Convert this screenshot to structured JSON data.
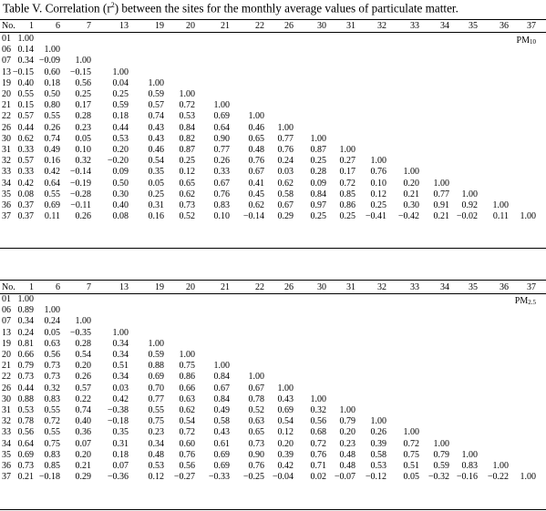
{
  "caption": {
    "prefix": "Table V. Correlation (r",
    "superscript": "2",
    "suffix": ") between the sites for the monthly average values of particulate matter."
  },
  "column_header_first": "No.",
  "column_headers": [
    "1",
    "6",
    "7",
    "13",
    "19",
    "20",
    "21",
    "22",
    "26",
    "30",
    "31",
    "32",
    "33",
    "34",
    "35",
    "36",
    "37"
  ],
  "row_labels": [
    "01",
    "06",
    "07",
    "13",
    "19",
    "20",
    "21",
    "22",
    "26",
    "30",
    "31",
    "32",
    "33",
    "34",
    "35",
    "36",
    "37"
  ],
  "tables": [
    {
      "label_main": "PM",
      "label_sub": "10",
      "rows": [
        [
          "1.00"
        ],
        [
          "0.14",
          "1.00"
        ],
        [
          "0.34",
          "−0.09",
          "1.00"
        ],
        [
          "−0.15",
          "0.60",
          "−0.15",
          "1.00"
        ],
        [
          "0.40",
          "0.18",
          "0.56",
          "0.04",
          "1.00"
        ],
        [
          "0.55",
          "0.50",
          "0.25",
          "0.25",
          "0.59",
          "1.00"
        ],
        [
          "0.15",
          "0.80",
          "0.17",
          "0.59",
          "0.57",
          "0.72",
          "1.00"
        ],
        [
          "0.57",
          "0.55",
          "0.28",
          "0.18",
          "0.74",
          "0.53",
          "0.69",
          "1.00"
        ],
        [
          "0.44",
          "0.26",
          "0.23",
          "0.44",
          "0.43",
          "0.84",
          "0.64",
          "0.46",
          "1.00"
        ],
        [
          "0.62",
          "0.74",
          "0.05",
          "0.53",
          "0.43",
          "0.82",
          "0.90",
          "0.65",
          "0.77",
          "1.00"
        ],
        [
          "0.33",
          "0.49",
          "0.10",
          "0.20",
          "0.46",
          "0.87",
          "0.77",
          "0.48",
          "0.76",
          "0.87",
          "1.00"
        ],
        [
          "0.57",
          "0.16",
          "0.32",
          "−0.20",
          "0.54",
          "0.25",
          "0.26",
          "0.76",
          "0.24",
          "0.25",
          "0.27",
          "1.00"
        ],
        [
          "0.33",
          "0.42",
          "−0.14",
          "0.09",
          "0.35",
          "0.12",
          "0.33",
          "0.67",
          "0.03",
          "0.28",
          "0.17",
          "0.76",
          "1.00"
        ],
        [
          "0.42",
          "0.64",
          "−0.19",
          "0.50",
          "0.05",
          "0.65",
          "0.67",
          "0.41",
          "0.62",
          "0.09",
          "0.72",
          "0.10",
          "0.20",
          "1.00"
        ],
        [
          "0.08",
          "0.55",
          "−0.28",
          "0.30",
          "0.25",
          "0.62",
          "0.76",
          "0.45",
          "0.58",
          "0.84",
          "0.85",
          "0.12",
          "0.21",
          "0.77",
          "1.00"
        ],
        [
          "0.37",
          "0.69",
          "−0.11",
          "0.40",
          "0.31",
          "0.73",
          "0.83",
          "0.62",
          "0.67",
          "0.97",
          "0.86",
          "0.25",
          "0.30",
          "0.91",
          "0.92",
          "1.00"
        ],
        [
          "0.37",
          "0.11",
          "0.26",
          "0.08",
          "0.16",
          "0.52",
          "0.10",
          "−0.14",
          "0.29",
          "0.25",
          "0.25",
          "−0.41",
          "−0.42",
          "0.21",
          "−0.02",
          "0.11",
          "1.00"
        ]
      ]
    },
    {
      "label_main": "PM",
      "label_sub": "2.5",
      "rows": [
        [
          "1.00"
        ],
        [
          "0.89",
          "1.00"
        ],
        [
          "0.34",
          "0.24",
          "1.00"
        ],
        [
          "0.24",
          "0.05",
          "−0.35",
          "1.00"
        ],
        [
          "0.81",
          "0.63",
          "0.28",
          "0.34",
          "1.00"
        ],
        [
          "0.66",
          "0.56",
          "0.54",
          "0.34",
          "0.59",
          "1.00"
        ],
        [
          "0.79",
          "0.73",
          "0.20",
          "0.51",
          "0.88",
          "0.75",
          "1.00"
        ],
        [
          "0.73",
          "0.73",
          "0.26",
          "0.34",
          "0.69",
          "0.86",
          "0.84",
          "1.00"
        ],
        [
          "0.44",
          "0.32",
          "0.57",
          "0.03",
          "0.70",
          "0.66",
          "0.67",
          "0.67",
          "1.00"
        ],
        [
          "0.88",
          "0.83",
          "0.22",
          "0.42",
          "0.77",
          "0.63",
          "0.84",
          "0.78",
          "0.43",
          "1.00"
        ],
        [
          "0.53",
          "0.55",
          "0.74",
          "−0.38",
          "0.55",
          "0.62",
          "0.49",
          "0.52",
          "0.69",
          "0.32",
          "1.00"
        ],
        [
          "0.78",
          "0.72",
          "0.40",
          "−0.18",
          "0.75",
          "0.54",
          "0.58",
          "0.63",
          "0.54",
          "0.56",
          "0.79",
          "1.00"
        ],
        [
          "0.56",
          "0.55",
          "0.36",
          "0.35",
          "0.23",
          "0.72",
          "0.43",
          "0.65",
          "0.12",
          "0.68",
          "0.20",
          "0.26",
          "1.00"
        ],
        [
          "0.64",
          "0.75",
          "0.07",
          "0.31",
          "0.34",
          "0.60",
          "0.61",
          "0.73",
          "0.20",
          "0.72",
          "0.23",
          "0.39",
          "0.72",
          "1.00"
        ],
        [
          "0.69",
          "0.83",
          "0.20",
          "0.18",
          "0.48",
          "0.76",
          "0.69",
          "0.90",
          "0.39",
          "0.76",
          "0.48",
          "0.58",
          "0.75",
          "0.79",
          "1.00"
        ],
        [
          "0.73",
          "0.85",
          "0.21",
          "0.07",
          "0.53",
          "0.56",
          "0.69",
          "0.76",
          "0.42",
          "0.71",
          "0.48",
          "0.53",
          "0.51",
          "0.59",
          "0.83",
          "1.00"
        ],
        [
          "0.21",
          "−0.18",
          "0.29",
          "−0.36",
          "0.12",
          "−0.27",
          "−0.33",
          "−0.25",
          "−0.04",
          "0.02",
          "−0.07",
          "−0.12",
          "0.05",
          "−0.32",
          "−0.16",
          "−0.22",
          "1.00"
        ]
      ]
    }
  ]
}
